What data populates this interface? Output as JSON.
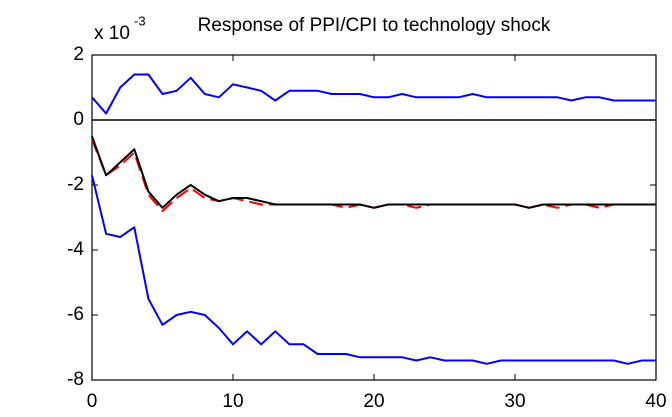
{
  "chart_data": {
    "type": "line",
    "title": "Response of PPI/CPI to technology shock",
    "y_multiplier": {
      "base": "x 10",
      "exponent": "-3"
    },
    "x": [
      0,
      1,
      2,
      3,
      4,
      5,
      6,
      7,
      8,
      9,
      10,
      11,
      12,
      13,
      14,
      15,
      16,
      17,
      18,
      19,
      20,
      21,
      22,
      23,
      24,
      25,
      26,
      27,
      28,
      29,
      30,
      31,
      32,
      33,
      34,
      35,
      36,
      37,
      38,
      39,
      40
    ],
    "series": [
      {
        "color": "#0000ff",
        "dashed": false,
        "values": [
          0.7,
          0.2,
          1.0,
          1.4,
          1.4,
          0.8,
          0.9,
          1.3,
          0.8,
          0.7,
          1.1,
          1.0,
          0.9,
          0.6,
          0.9,
          0.9,
          0.9,
          0.8,
          0.8,
          0.8,
          0.7,
          0.7,
          0.8,
          0.7,
          0.7,
          0.7,
          0.7,
          0.8,
          0.7,
          0.7,
          0.7,
          0.7,
          0.7,
          0.7,
          0.6,
          0.7,
          0.7,
          0.6,
          0.6,
          0.6,
          0.6
        ]
      },
      {
        "color": "#ff0000",
        "dashed": true,
        "values": [
          -0.6,
          -1.7,
          -1.4,
          -1.0,
          -2.3,
          -2.8,
          -2.4,
          -2.1,
          -2.4,
          -2.5,
          -2.4,
          -2.5,
          -2.6,
          -2.6,
          -2.6,
          -2.6,
          -2.6,
          -2.6,
          -2.7,
          -2.6,
          -2.7,
          -2.6,
          -2.6,
          -2.7,
          -2.6,
          -2.6,
          -2.6,
          -2.6,
          -2.6,
          -2.6,
          -2.6,
          -2.7,
          -2.6,
          -2.7,
          -2.6,
          -2.6,
          -2.7,
          -2.6,
          -2.6,
          -2.6,
          -2.6
        ]
      },
      {
        "color": "#000000",
        "dashed": false,
        "values": [
          -0.5,
          -1.7,
          -1.3,
          -0.9,
          -2.2,
          -2.7,
          -2.3,
          -2.0,
          -2.3,
          -2.5,
          -2.4,
          -2.4,
          -2.5,
          -2.6,
          -2.6,
          -2.6,
          -2.6,
          -2.6,
          -2.6,
          -2.6,
          -2.7,
          -2.6,
          -2.6,
          -2.6,
          -2.6,
          -2.6,
          -2.6,
          -2.6,
          -2.6,
          -2.6,
          -2.6,
          -2.7,
          -2.6,
          -2.6,
          -2.6,
          -2.6,
          -2.6,
          -2.6,
          -2.6,
          -2.6,
          -2.6
        ]
      },
      {
        "color": "#0000ff",
        "dashed": false,
        "values": [
          -1.7,
          -3.5,
          -3.6,
          -3.3,
          -5.5,
          -6.3,
          -6.0,
          -5.9,
          -6.0,
          -6.4,
          -6.9,
          -6.5,
          -6.9,
          -6.5,
          -6.9,
          -6.9,
          -7.2,
          -7.2,
          -7.2,
          -7.3,
          -7.3,
          -7.3,
          -7.3,
          -7.4,
          -7.3,
          -7.4,
          -7.4,
          -7.4,
          -7.5,
          -7.4,
          -7.4,
          -7.4,
          -7.4,
          -7.4,
          -7.4,
          -7.4,
          -7.4,
          -7.4,
          -7.5,
          -7.4,
          -7.4
        ]
      }
    ],
    "reference_line": 0,
    "xlim": [
      0,
      40
    ],
    "xticks": [
      0,
      10,
      20,
      30,
      40
    ],
    "ylim": [
      -8,
      2
    ],
    "yticks": [
      -8,
      -6,
      -4,
      -2,
      0,
      2
    ],
    "grid": false
  }
}
